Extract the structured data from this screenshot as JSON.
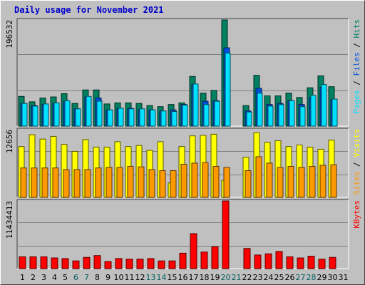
{
  "title": "Daily usage for November 2021",
  "colors": {
    "pages": "#00e0ff",
    "files": "#0050e0",
    "hits": "#008060",
    "visits": "#ffff00",
    "sites": "#ff9900",
    "kbytes": "#ff0000",
    "weekend_label": "#006060",
    "weekday_label": "#000000",
    "axis_text": "#000000"
  },
  "chart_data": [
    {
      "type": "bar",
      "panel": "top",
      "axis_max_label": "196532",
      "ylim": [
        0,
        196532
      ],
      "legend": [
        {
          "text": "Pages",
          "color": "#00e0ff"
        },
        {
          "text": " / ",
          "color": "#000000"
        },
        {
          "text": "Files",
          "color": "#0050e0"
        },
        {
          "text": " / ",
          "color": "#000000"
        },
        {
          "text": "Hits",
          "color": "#008060"
        }
      ],
      "categories": [
        "1",
        "2",
        "3",
        "4",
        "5",
        "6",
        "7",
        "8",
        "9",
        "10",
        "11",
        "12",
        "13",
        "14",
        "15",
        "16",
        "17",
        "18",
        "19",
        "20",
        "21",
        "22",
        "23",
        "24",
        "25",
        "26",
        "27",
        "28",
        "29",
        "30",
        "31"
      ],
      "series": [
        {
          "name": "Hits",
          "values": [
            55000,
            45000,
            52000,
            54000,
            60000,
            42000,
            67000,
            67000,
            41000,
            43000,
            43000,
            42000,
            38000,
            36000,
            40000,
            43000,
            92000,
            61000,
            66000,
            196532,
            0,
            38000,
            94000,
            56000,
            56000,
            61000,
            53000,
            71000,
            93000,
            73000,
            0
          ]
        },
        {
          "name": "Files",
          "values": [
            42000,
            38000,
            40000,
            42000,
            46000,
            32000,
            54000,
            52000,
            30000,
            33000,
            33000,
            30000,
            30000,
            28000,
            30000,
            40000,
            77000,
            46000,
            47000,
            145000,
            0,
            28000,
            70000,
            40000,
            42000,
            47000,
            40000,
            53000,
            72000,
            49000,
            0
          ]
        },
        {
          "name": "Pages",
          "values": [
            42000,
            37000,
            41000,
            43000,
            47000,
            32000,
            55000,
            46000,
            30000,
            33000,
            32000,
            32000,
            30000,
            28000,
            27000,
            39000,
            78000,
            40000,
            46000,
            135000,
            0,
            26000,
            61000,
            37000,
            40000,
            47000,
            36000,
            57000,
            77000,
            50000,
            0
          ]
        }
      ]
    },
    {
      "type": "bar",
      "panel": "middle",
      "axis_max_label": "12656",
      "ylim": [
        0,
        12656
      ],
      "legend": [
        {
          "text": "Sites",
          "color": "#ff9900"
        },
        {
          "text": " / ",
          "color": "#000000"
        },
        {
          "text": "Visits",
          "color": "#ffff00"
        }
      ],
      "categories": [
        "1",
        "2",
        "3",
        "4",
        "5",
        "6",
        "7",
        "8",
        "9",
        "10",
        "11",
        "12",
        "13",
        "14",
        "15",
        "16",
        "17",
        "18",
        "19",
        "20",
        "21",
        "22",
        "23",
        "24",
        "25",
        "26",
        "27",
        "28",
        "29",
        "30",
        "31"
      ],
      "series": [
        {
          "name": "Visits",
          "values": [
            9500,
            11700,
            10900,
            11400,
            9900,
            8600,
            10800,
            9400,
            9400,
            10400,
            9500,
            9700,
            8800,
            10400,
            2700,
            9500,
            11500,
            11600,
            11800,
            3200,
            0,
            7500,
            12100,
            10300,
            10600,
            9500,
            9800,
            9400,
            9000,
            10700,
            0
          ]
        },
        {
          "name": "Sites",
          "values": [
            5500,
            5500,
            5500,
            5500,
            5200,
            5200,
            5200,
            5500,
            5600,
            5600,
            5800,
            5700,
            5200,
            5000,
            5000,
            6200,
            6400,
            6500,
            5800,
            5600,
            0,
            5000,
            7600,
            6400,
            5600,
            5800,
            5600,
            5800,
            6000,
            6100,
            0
          ]
        }
      ]
    },
    {
      "type": "bar",
      "panel": "bottom",
      "axis_max_label": "11434413",
      "ylim": [
        0,
        11434413
      ],
      "legend": [
        {
          "text": "KBytes",
          "color": "#ff0000"
        }
      ],
      "categories": [
        "1",
        "2",
        "3",
        "4",
        "5",
        "6",
        "7",
        "8",
        "9",
        "10",
        "11",
        "12",
        "13",
        "14",
        "15",
        "16",
        "17",
        "18",
        "19",
        "20",
        "21",
        "22",
        "23",
        "24",
        "25",
        "26",
        "27",
        "28",
        "29",
        "30",
        "31"
      ],
      "series": [
        {
          "name": "KBytes",
          "values": [
            2000000,
            2000000,
            2000000,
            1800000,
            1700000,
            1300000,
            1900000,
            2200000,
            1200000,
            1700000,
            1600000,
            1600000,
            1700000,
            1300000,
            1300000,
            2600000,
            5900000,
            2800000,
            3700000,
            11434413,
            0,
            3400000,
            2300000,
            2500000,
            2900000,
            2000000,
            1800000,
            2100000,
            1600000,
            1900000,
            0
          ]
        }
      ]
    }
  ],
  "weekend_days": [
    "6",
    "7",
    "13",
    "14",
    "20",
    "21",
    "27",
    "28"
  ]
}
